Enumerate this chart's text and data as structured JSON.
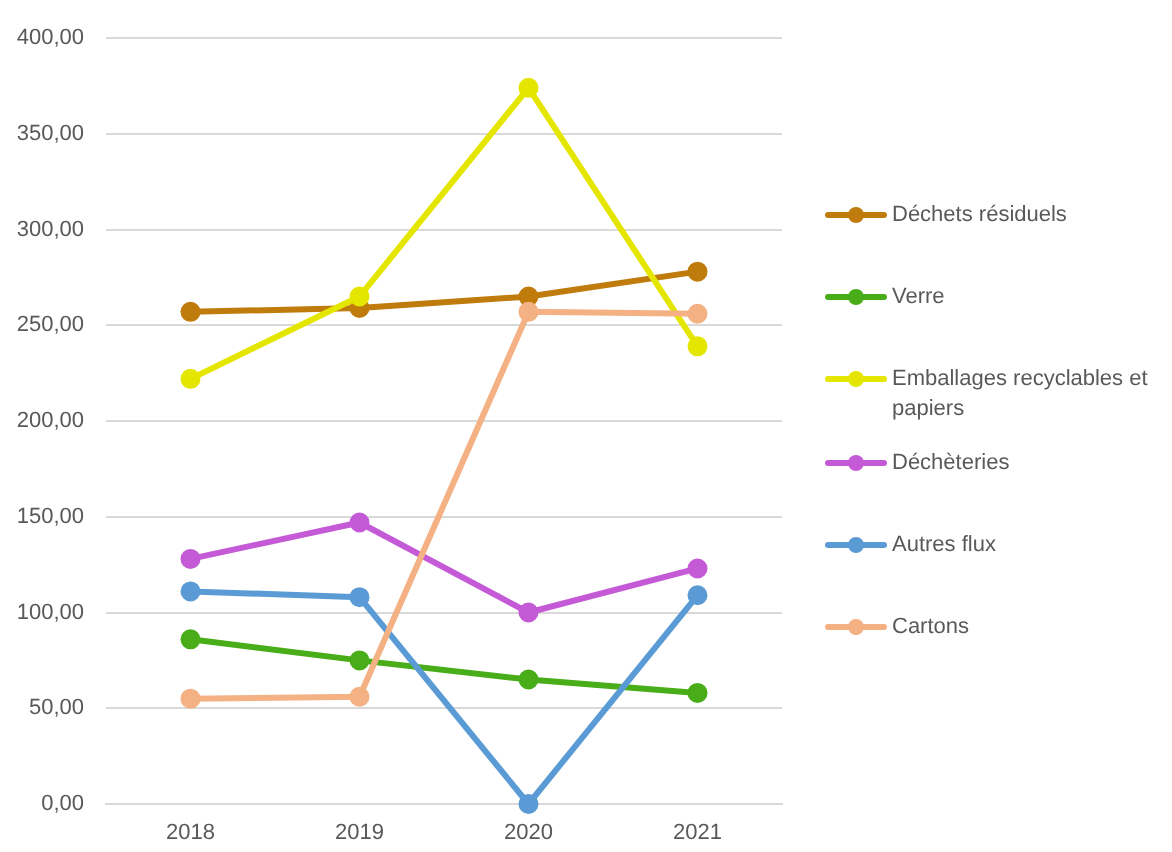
{
  "chart_data": {
    "type": "line",
    "categories": [
      "2018",
      "2019",
      "2020",
      "2021"
    ],
    "series": [
      {
        "name": "Déchets résiduels",
        "color": "#bf7b0b",
        "values": [
          257,
          259,
          265,
          278
        ]
      },
      {
        "name": "Verre",
        "color": "#48ad18",
        "values": [
          86,
          75,
          65,
          58
        ]
      },
      {
        "name": "Emballages recyclables et papiers",
        "color": "#e5e600",
        "values": [
          222,
          265,
          374,
          239
        ]
      },
      {
        "name": "Déchèteries",
        "color": "#c45ad6",
        "values": [
          128,
          147,
          100,
          123
        ]
      },
      {
        "name": "Autres flux",
        "color": "#5b9bd5",
        "values": [
          111,
          108,
          0,
          109
        ]
      },
      {
        "name": "Cartons",
        "color": "#f4b183",
        "values": [
          55,
          56,
          257,
          256
        ]
      }
    ],
    "ylim": [
      0,
      400
    ],
    "yticks": [
      {
        "value": 0,
        "label": "0,00"
      },
      {
        "value": 50,
        "label": "50,00"
      },
      {
        "value": 100,
        "label": "100,00"
      },
      {
        "value": 150,
        "label": "150,00"
      },
      {
        "value": 200,
        "label": "200,00"
      },
      {
        "value": 250,
        "label": "250,00"
      },
      {
        "value": 300,
        "label": "300,00"
      },
      {
        "value": 350,
        "label": "350,00"
      },
      {
        "value": 400,
        "label": "400,00"
      }
    ],
    "grid": "y",
    "legend": "right",
    "marker": "circle",
    "line_style": "solid"
  }
}
